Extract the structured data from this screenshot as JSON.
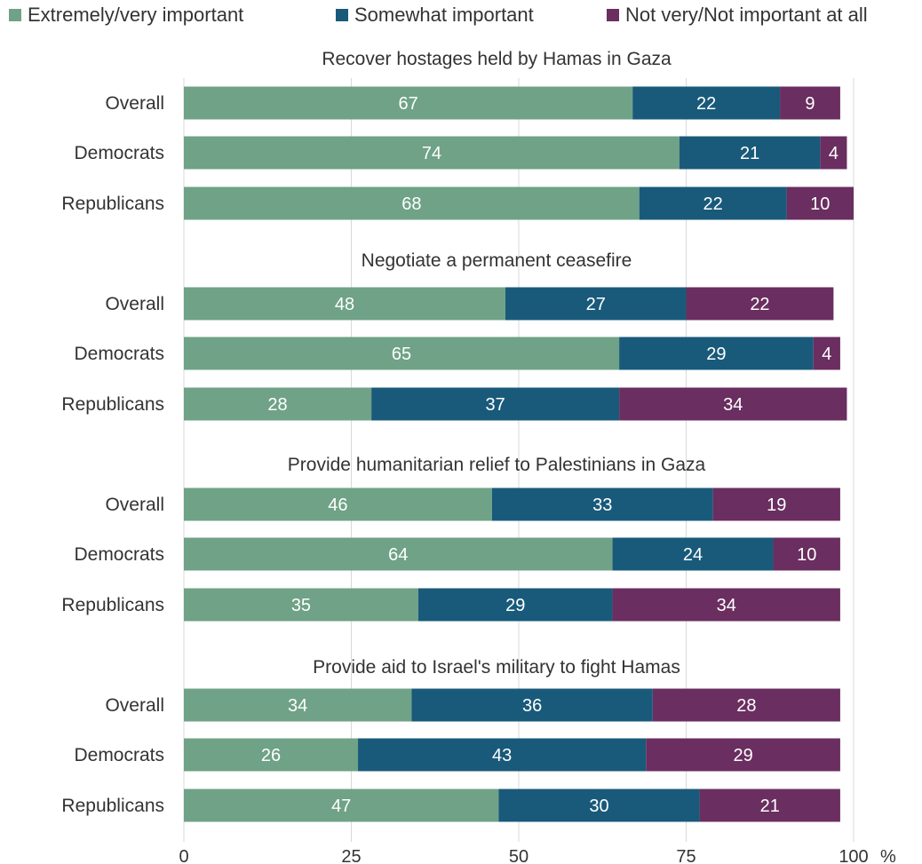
{
  "legend": [
    {
      "label": "Extremely/very important",
      "color": "#6fa286"
    },
    {
      "label": "Somewhat important",
      "color": "#195a7a"
    },
    {
      "label": "Not very/Not important at all",
      "color": "#6a2e60"
    }
  ],
  "chart_data": {
    "type": "bar",
    "orientation": "horizontal",
    "stacked": true,
    "xlim": [
      0,
      100
    ],
    "xticks": [
      0,
      25,
      50,
      75,
      100
    ],
    "xticklabels": [
      "0",
      "25",
      "50",
      "75",
      "100"
    ],
    "xunit": "%",
    "grid": true,
    "legend_position": "top",
    "series": [
      {
        "name": "Extremely/very important",
        "color": "#6fa286"
      },
      {
        "name": "Somewhat important",
        "color": "#195a7a"
      },
      {
        "name": "Not very/Not important at all",
        "color": "#6a2e60"
      }
    ],
    "groups": [
      {
        "title": "Recover hostages held by Hamas in Gaza",
        "rows": [
          {
            "label": "Overall",
            "values": [
              67,
              22,
              9
            ]
          },
          {
            "label": "Democrats",
            "values": [
              74,
              21,
              4
            ]
          },
          {
            "label": "Republicans",
            "values": [
              68,
              22,
              10
            ]
          }
        ]
      },
      {
        "title": "Negotiate a permanent ceasefire",
        "rows": [
          {
            "label": "Overall",
            "values": [
              48,
              27,
              22
            ]
          },
          {
            "label": "Democrats",
            "values": [
              65,
              29,
              4
            ]
          },
          {
            "label": "Republicans",
            "values": [
              28,
              37,
              34
            ]
          }
        ]
      },
      {
        "title": "Provide humanitarian relief to Palestinians in Gaza",
        "rows": [
          {
            "label": "Overall",
            "values": [
              46,
              33,
              19
            ]
          },
          {
            "label": "Democrats",
            "values": [
              64,
              24,
              10
            ]
          },
          {
            "label": "Republicans",
            "values": [
              35,
              29,
              34
            ]
          }
        ]
      },
      {
        "title": "Provide aid to Israel's military to fight Hamas",
        "rows": [
          {
            "label": "Overall",
            "values": [
              34,
              36,
              28
            ]
          },
          {
            "label": "Democrats",
            "values": [
              26,
              43,
              29
            ]
          },
          {
            "label": "Republicans",
            "values": [
              47,
              30,
              21
            ]
          }
        ]
      }
    ]
  }
}
